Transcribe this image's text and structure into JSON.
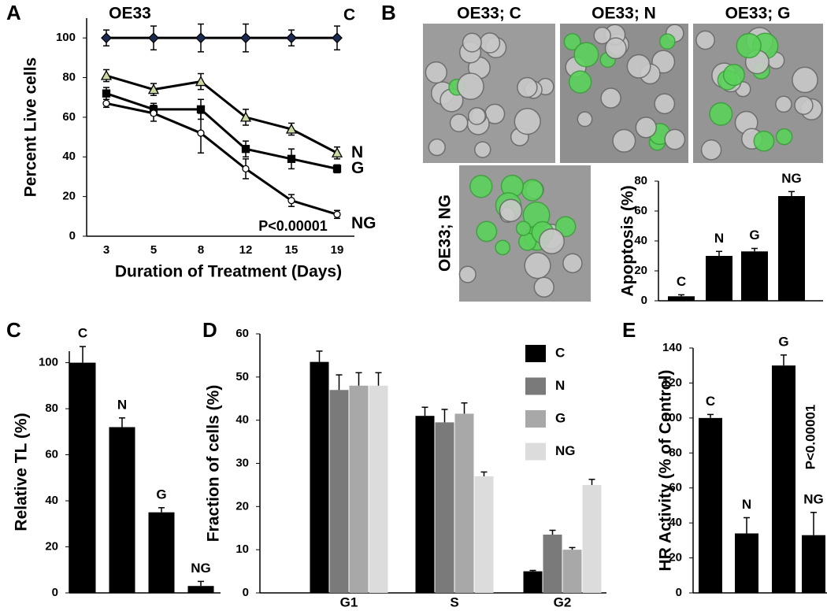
{
  "panel_b_images": {
    "labels": [
      "OE33; C",
      "OE33; N",
      "OE33; G",
      "OE33; NG"
    ]
  },
  "chart_data": [
    {
      "type": "line",
      "panel": "A",
      "title": "OE33",
      "x_label": "Duration of Treatment (Days)",
      "y_label": "Percent Live cells",
      "categories": [
        "3",
        "5",
        "8",
        "12",
        "15",
        "19"
      ],
      "series": [
        {
          "name": "C",
          "marker": "diamond",
          "color": "#1c2b52",
          "values": [
            100,
            100,
            100,
            100,
            100,
            100
          ],
          "errors": [
            4,
            6,
            7,
            7,
            4,
            6
          ]
        },
        {
          "name": "N",
          "marker": "triangle",
          "color": "#c9d9a0",
          "values": [
            81,
            74,
            78,
            60,
            54,
            42
          ],
          "errors": [
            3,
            3,
            4,
            4,
            3,
            3
          ]
        },
        {
          "name": "G",
          "marker": "square",
          "color": "#000000",
          "values": [
            72,
            64,
            64,
            44,
            39,
            34
          ],
          "errors": [
            3,
            3,
            5,
            4,
            5,
            2
          ]
        },
        {
          "name": "NG",
          "marker": "circle",
          "color": "#ffffff",
          "values": [
            67,
            62,
            52,
            34,
            18,
            11
          ],
          "errors": [
            2,
            4,
            10,
            5,
            3,
            2
          ]
        }
      ],
      "annotation": "P<0.00001",
      "ylim": [
        0,
        110
      ],
      "yticks": [
        0,
        20,
        40,
        60,
        80,
        100
      ]
    },
    {
      "type": "bar",
      "panel": "B",
      "y_label": "Apoptosis (%)",
      "categories": [
        "C",
        "N",
        "G",
        "NG"
      ],
      "values": [
        3,
        30,
        33,
        70
      ],
      "errors": [
        1,
        3,
        2,
        3
      ],
      "color": "#000000",
      "ylim": [
        0,
        80
      ],
      "yticks": [
        0,
        20,
        40,
        60,
        80
      ]
    },
    {
      "type": "bar",
      "panel": "C",
      "y_label": "Relative TL (%)",
      "categories": [
        "C",
        "N",
        "G",
        "NG"
      ],
      "values": [
        100,
        72,
        35,
        3
      ],
      "errors": [
        7,
        4,
        2,
        2
      ],
      "color": "#000000",
      "ylim": [
        0,
        105
      ],
      "yticks": [
        0,
        20,
        40,
        60,
        80,
        100
      ]
    },
    {
      "type": "grouped_bar",
      "panel": "D",
      "y_label": "Fraction of cells (%)",
      "categories": [
        "G1",
        "S",
        "G2"
      ],
      "series": [
        {
          "name": "C",
          "color": "#000000",
          "values": [
            53.5,
            41,
            5
          ],
          "errors": [
            2.5,
            2,
            0.2
          ]
        },
        {
          "name": "N",
          "color": "#7a7a7a",
          "values": [
            47,
            39.5,
            13.5
          ],
          "errors": [
            3.5,
            3,
            1
          ]
        },
        {
          "name": "G",
          "color": "#a8a8a8",
          "values": [
            48,
            41.5,
            10
          ],
          "errors": [
            3,
            2.5,
            0.5
          ]
        },
        {
          "name": "NG",
          "color": "#dcdcdc",
          "values": [
            48,
            27,
            25
          ],
          "errors": [
            3,
            1,
            1.3
          ]
        }
      ],
      "legend": "upper-right",
      "ylim": [
        0,
        60
      ],
      "yticks": [
        0,
        10,
        20,
        30,
        40,
        50,
        60
      ]
    },
    {
      "type": "bar",
      "panel": "E",
      "y_label": "HR Activity (% of Control)",
      "categories": [
        "C",
        "N",
        "G",
        "NG"
      ],
      "values": [
        100,
        34,
        130,
        33
      ],
      "errors": [
        2,
        9,
        6,
        13
      ],
      "annotation": "P<0.00001",
      "color": "#000000",
      "ylim": [
        0,
        140
      ],
      "yticks": [
        0,
        20,
        40,
        60,
        80,
        100,
        120,
        140
      ]
    }
  ]
}
